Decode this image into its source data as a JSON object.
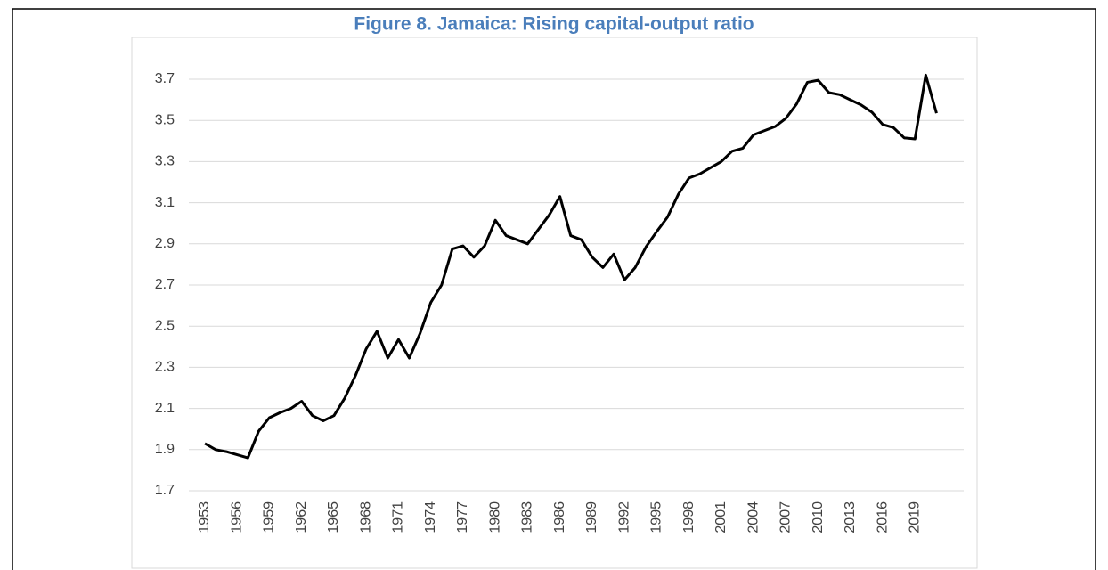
{
  "chart_data": {
    "type": "line",
    "title": "Figure 8. Jamaica: Rising capital-output ratio",
    "categories": [
      "1953",
      null,
      null,
      "1956",
      null,
      null,
      "1959",
      null,
      null,
      "1962",
      null,
      null,
      "1965",
      null,
      null,
      "1968",
      null,
      null,
      "1971",
      null,
      null,
      "1974",
      null,
      null,
      "1977",
      null,
      null,
      "1980",
      null,
      null,
      "1983",
      null,
      null,
      "1986",
      null,
      null,
      "1989",
      null,
      null,
      "1992",
      null,
      null,
      "1995",
      null,
      null,
      "1998",
      null,
      null,
      "2001",
      null,
      null,
      "2004",
      null,
      null,
      "2007",
      null,
      null,
      "2010",
      null,
      null,
      "2013",
      null,
      null,
      "2016",
      null,
      null,
      "2019",
      null,
      null
    ],
    "values": [
      1.93,
      1.9,
      1.89,
      1.875,
      1.86,
      1.99,
      2.055,
      2.08,
      2.1,
      2.135,
      2.065,
      2.04,
      2.065,
      2.15,
      2.26,
      2.39,
      2.475,
      2.345,
      2.435,
      2.345,
      2.465,
      2.615,
      2.7,
      2.875,
      2.89,
      2.835,
      2.89,
      3.015,
      2.94,
      2.92,
      2.9,
      2.97,
      3.04,
      3.13,
      2.94,
      2.92,
      2.835,
      2.785,
      2.85,
      2.725,
      2.785,
      2.885,
      2.96,
      3.03,
      3.14,
      3.22,
      3.24,
      3.27,
      3.3,
      3.35,
      3.365,
      3.43,
      3.45,
      3.47,
      3.51,
      3.58,
      3.685,
      3.695,
      3.635,
      3.625,
      3.6,
      3.575,
      3.54,
      3.48,
      3.465,
      3.415,
      3.41,
      3.72,
      3.535
    ],
    "color": "#000000",
    "ylim": [
      1.7,
      3.7
    ],
    "yticks": [
      1.7,
      1.9,
      2.1,
      2.3,
      2.5,
      2.7,
      2.9,
      3.1,
      3.3,
      3.5,
      3.7
    ],
    "grid": true
  }
}
